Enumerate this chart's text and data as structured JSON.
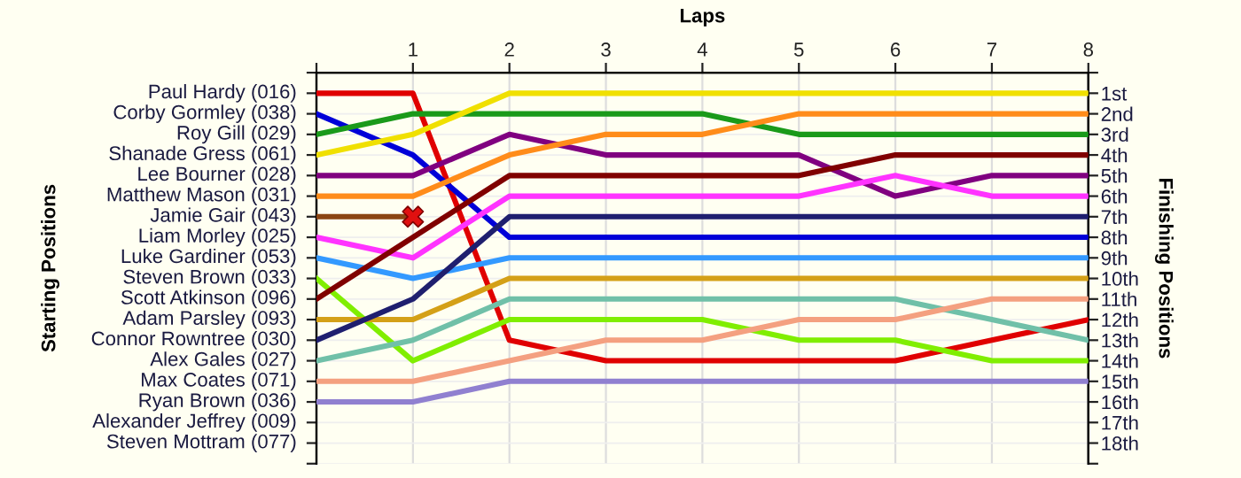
{
  "chart_data": {
    "type": "line",
    "xlabel": "Laps",
    "y2label": "Finishing Positions",
    "grid": true,
    "marker": "none",
    "line_style": "solid",
    "x": [
      0,
      1,
      2,
      3,
      4,
      5,
      6,
      7,
      8
    ],
    "xlim": [
      0,
      8
    ],
    "xticks": [
      {
        "value": 0,
        "label": null
      },
      1,
      2,
      3,
      4,
      5,
      6,
      7,
      8
    ],
    "annotations": [
      "Starting Positions",
      "Alexander Jeffrey (009)",
      "Steven Mottram (077)"
    ],
    "y2lim": [
      19,
      0
    ],
    "y2ticks": [
      {
        "value": 0,
        "label": null
      },
      {
        "value": 1,
        "label": "1st"
      },
      {
        "value": 2,
        "label": "2nd"
      },
      {
        "value": 3,
        "label": "3rd"
      },
      {
        "value": 4,
        "label": "4th"
      },
      {
        "value": 5,
        "label": "5th"
      },
      {
        "value": 6,
        "label": "6th"
      },
      {
        "value": 7,
        "label": "7th"
      },
      {
        "value": 8,
        "label": "8th"
      },
      {
        "value": 9,
        "label": "9th"
      },
      {
        "value": 10,
        "label": "10th"
      },
      {
        "value": 11,
        "label": "11th"
      },
      {
        "value": 12,
        "label": "12th"
      },
      {
        "value": 13,
        "label": "13th"
      },
      {
        "value": 14,
        "label": "14th"
      },
      {
        "value": 15,
        "label": "15th"
      },
      {
        "value": 16,
        "label": "16th"
      },
      {
        "value": 17,
        "label": "17th"
      },
      {
        "value": 18,
        "label": "18th"
      },
      {
        "value": 19,
        "label": null
      }
    ],
    "series": [
      {
        "name": "Paul Hardy (016)",
        "axis": "y2",
        "color": "#e00000",
        "values": [
          1,
          1,
          13,
          14,
          14,
          14,
          14,
          13,
          12
        ]
      },
      {
        "name": "Corby Gormley (038)",
        "axis": "y2",
        "color": "#0000d8",
        "values": [
          2,
          4,
          8,
          8,
          8,
          8,
          8,
          8,
          8
        ]
      },
      {
        "name": "Roy Gill (029)",
        "axis": "y2",
        "color": "#1a9a1a",
        "values": [
          3,
          2,
          2,
          2,
          2,
          3,
          3,
          3,
          3
        ]
      },
      {
        "name": "Shanade Gress (061)",
        "axis": "y2",
        "color": "#f0e000",
        "values": [
          4,
          3,
          1,
          1,
          1,
          1,
          1,
          1,
          1
        ]
      },
      {
        "name": "Lee Bourner (028)",
        "axis": "y2",
        "color": "#800080",
        "values": [
          5,
          5,
          3,
          4,
          4,
          4,
          6,
          5,
          5
        ]
      },
      {
        "name": "Matthew Mason (031)",
        "axis": "y2",
        "color": "#ff8c1a",
        "values": [
          6,
          6,
          4,
          3,
          3,
          2,
          2,
          2,
          2
        ]
      },
      {
        "name": "Jamie Gair (043)",
        "axis": "y2",
        "color": "#8b4513",
        "values": [
          7,
          7,
          null,
          null,
          null,
          null,
          null,
          null,
          null
        ]
      },
      {
        "name": "Liam Morley (025)",
        "axis": "y2",
        "color": "#ff33ff",
        "values": [
          8,
          9,
          6,
          6,
          6,
          6,
          5,
          6,
          6
        ]
      },
      {
        "name": "Luke Gardiner (053)",
        "axis": "y2",
        "color": "#3399ff",
        "values": [
          9,
          10,
          9,
          9,
          9,
          9,
          9,
          9,
          9
        ]
      },
      {
        "name": "Steven Brown (033)",
        "axis": "y2",
        "color": "#80ee00",
        "values": [
          10,
          14,
          12,
          12,
          12,
          13,
          13,
          14,
          14
        ]
      },
      {
        "name": "Scott Atkinson (096)",
        "axis": "y2",
        "color": "#800000",
        "values": [
          11,
          8,
          5,
          5,
          5,
          5,
          4,
          4,
          4
        ]
      },
      {
        "name": "Adam Parsley (093)",
        "axis": "y2",
        "color": "#d4a017",
        "values": [
          12,
          12,
          10,
          10,
          10,
          10,
          10,
          10,
          10
        ]
      },
      {
        "name": "Connor Rowntree (030)",
        "axis": "y2",
        "color": "#1f1f6f",
        "values": [
          13,
          11,
          7,
          7,
          7,
          7,
          7,
          7,
          7
        ]
      },
      {
        "name": "Alex Gales (027)",
        "axis": "y2",
        "color": "#70c0a8",
        "values": [
          14,
          13,
          11,
          11,
          11,
          11,
          11,
          12,
          13
        ]
      },
      {
        "name": "Max Coates (071)",
        "axis": "y2",
        "color": "#f4a080",
        "values": [
          15,
          15,
          14,
          13,
          13,
          12,
          12,
          11,
          11
        ]
      },
      {
        "name": "Ryan Brown (036)",
        "axis": "y2",
        "color": "#9080d0",
        "values": [
          16,
          16,
          15,
          15,
          15,
          15,
          15,
          15,
          15
        ]
      },
      {
        "type": "scatter",
        "axis": "y2",
        "color": "#e01010",
        "marker": "cross",
        "x": [
          1
        ],
        "values": [
          7
        ]
      }
    ]
  }
}
